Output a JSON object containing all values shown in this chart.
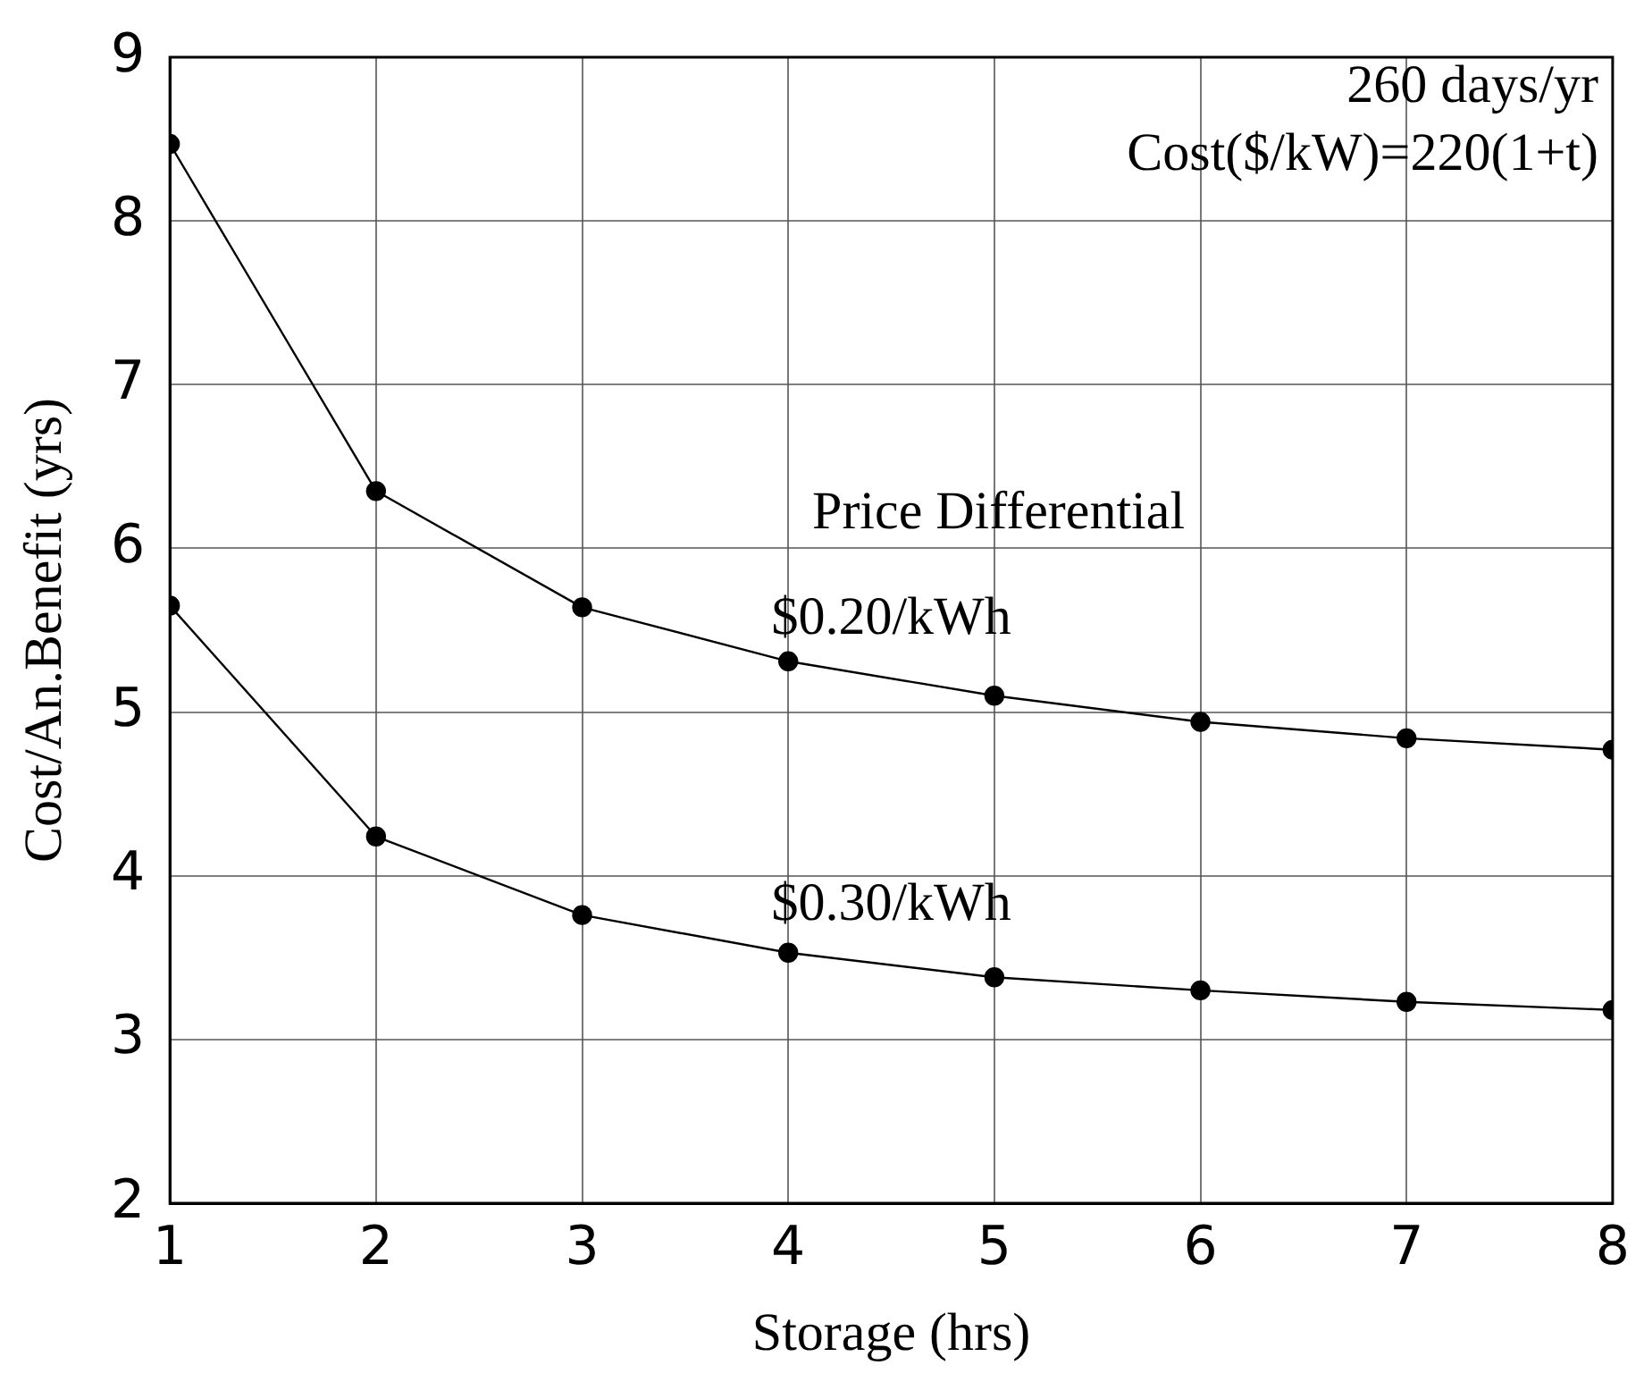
{
  "chart_data": {
    "type": "line",
    "xlabel": "Storage (hrs)",
    "ylabel": "Cost/An.Benefit (yrs)",
    "x": [
      1,
      2,
      3,
      4,
      5,
      6,
      7,
      8
    ],
    "series": [
      {
        "name": "$0.20/kWh",
        "color": "#000000",
        "values": [
          8.47,
          6.35,
          5.64,
          5.31,
          5.1,
          4.94,
          4.84,
          4.77
        ]
      },
      {
        "name": "$0.30/kWh",
        "color": "#000000",
        "values": [
          5.65,
          4.24,
          3.76,
          3.53,
          3.38,
          3.3,
          3.23,
          3.18
        ]
      }
    ],
    "annotations": [
      "260 days/yr",
      "Cost($/kW)=220(1+t)",
      "Price Differential"
    ],
    "xlim": [
      1,
      8
    ],
    "xticks": [
      1,
      2,
      3,
      4,
      5,
      6,
      7,
      8
    ],
    "ylim": [
      2,
      9
    ],
    "yticks": [
      2,
      3,
      4,
      5,
      6,
      7,
      8,
      9
    ],
    "grid": true,
    "legend": false,
    "marker": "circle",
    "line_style": "solid"
  }
}
